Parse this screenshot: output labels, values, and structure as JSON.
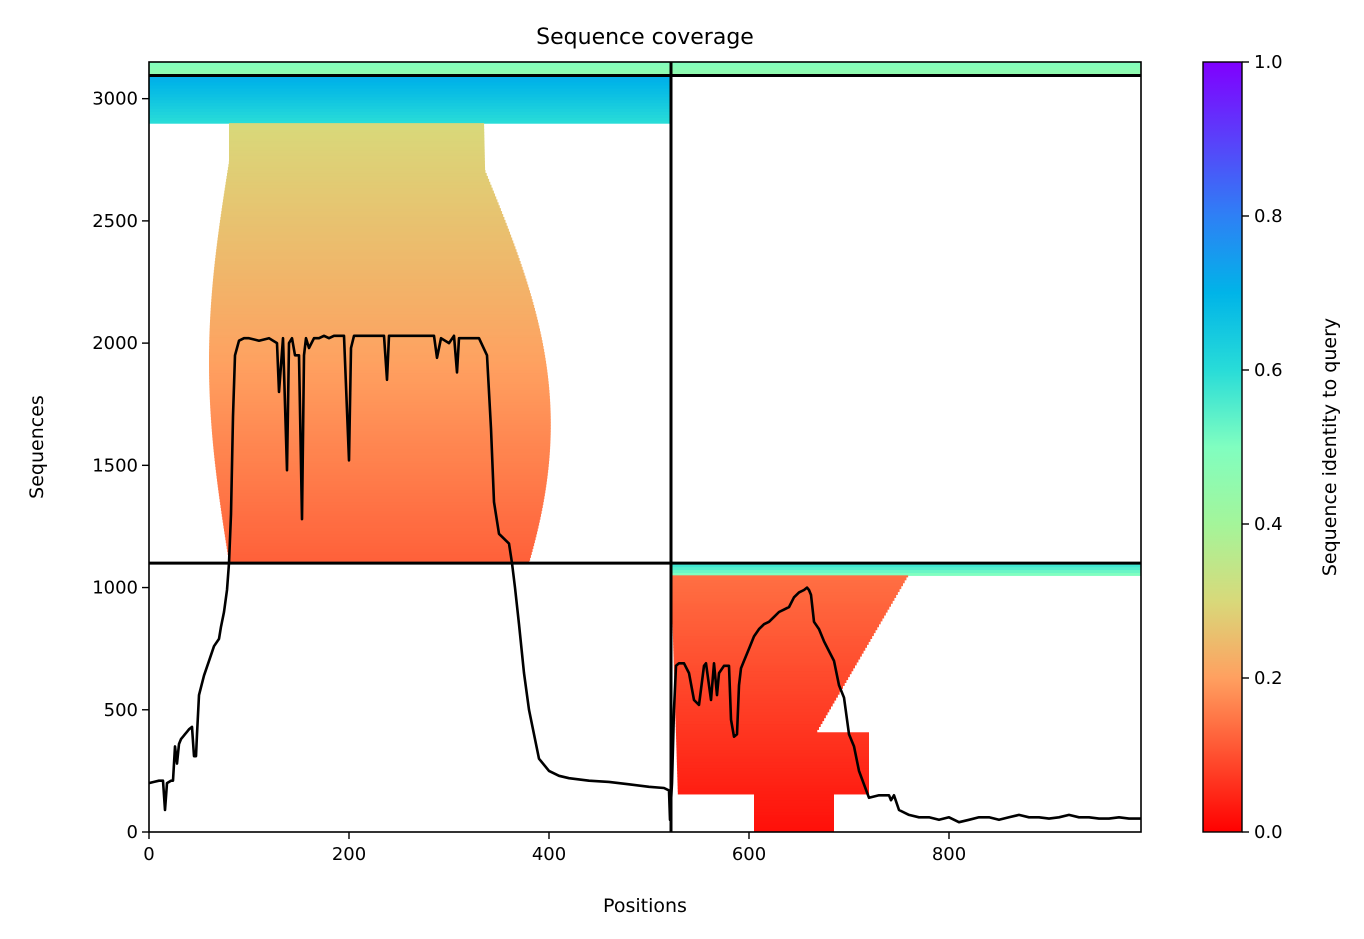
{
  "chart_data": {
    "type": "heatmap",
    "title": "Sequence coverage",
    "xlabel": "Positions",
    "ylabel": "Sequences",
    "xlim": [
      0,
      992
    ],
    "ylim": [
      0,
      3150
    ],
    "xticks": [
      0,
      200,
      400,
      600,
      800
    ],
    "yticks": [
      0,
      500,
      1000,
      1500,
      2000,
      2500,
      3000
    ],
    "grid": false,
    "segment_boundary_x": 522,
    "block_boundaries_y": [
      1100,
      3095
    ],
    "colorbar": {
      "label": "Sequence identity to query",
      "range": [
        0,
        1
      ],
      "ticks": [
        0.0,
        0.2,
        0.4,
        0.6,
        0.8,
        1.0
      ],
      "tick_labels": [
        "0.0",
        "0.2",
        "0.4",
        "0.6",
        "0.8",
        "1.0"
      ],
      "colormap": "rainbow_r"
    },
    "coverage_blocks": [
      {
        "name": "paired",
        "x_range": [
          0,
          992
        ],
        "y_range": [
          3095,
          3150
        ],
        "identity_range": [
          0.45,
          0.5
        ],
        "lengths": [
          [
            [
              0,
              522
            ],
            [
              522,
              992
            ]
          ]
        ]
      },
      {
        "name": "segment-1-top",
        "x_range": [
          0,
          522
        ],
        "y_range": [
          2900,
          3095
        ],
        "identity_range": [
          0.6,
          0.72
        ]
      },
      {
        "name": "segment-1-bulk",
        "x_range": [
          0,
          522
        ],
        "y_range": [
          1100,
          2900
        ],
        "identity_range": [
          0.12,
          0.3
        ]
      },
      {
        "name": "segment-2-top",
        "x_range": [
          522,
          992
        ],
        "y_range": [
          1050,
          1100
        ],
        "identity_range": [
          0.5,
          0.6
        ]
      },
      {
        "name": "segment-2-bulk",
        "x_range": [
          522,
          992
        ],
        "y_range": [
          0,
          1050
        ],
        "identity_range": [
          0.02,
          0.14
        ]
      }
    ],
    "coverage_line": {
      "color": "#000000",
      "x": [
        0,
        5,
        10,
        14,
        16,
        18,
        22,
        24,
        26,
        28,
        30,
        32,
        34,
        36,
        38,
        40,
        43,
        45,
        47,
        48,
        50,
        55,
        60,
        65,
        70,
        72,
        75,
        78,
        80,
        82,
        84,
        86,
        88,
        90,
        95,
        100,
        110,
        120,
        128,
        130,
        134,
        138,
        140,
        143,
        146,
        150,
        153,
        155,
        157,
        160,
        165,
        170,
        175,
        180,
        185,
        195,
        200,
        202,
        205,
        210,
        230,
        235,
        238,
        240,
        243,
        260,
        280,
        285,
        288,
        292,
        300,
        305,
        308,
        310,
        315,
        330,
        338,
        342,
        345,
        350,
        355,
        360,
        363,
        366,
        370,
        375,
        380,
        385,
        390,
        400,
        410,
        420,
        440,
        460,
        480,
        500,
        515,
        520,
        521,
        523,
        525,
        527,
        530,
        535,
        540,
        545,
        550,
        555,
        557,
        560,
        562,
        565,
        568,
        570,
        575,
        580,
        582,
        585,
        588,
        590,
        592,
        595,
        600,
        605,
        610,
        615,
        620,
        625,
        630,
        635,
        640,
        645,
        650,
        655,
        658,
        660,
        662,
        665,
        670,
        675,
        680,
        685,
        690,
        695,
        700,
        705,
        710,
        720,
        730,
        740,
        742,
        745,
        750,
        760,
        770,
        780,
        790,
        800,
        810,
        820,
        830,
        840,
        850,
        860,
        870,
        880,
        890,
        900,
        910,
        920,
        930,
        940,
        950,
        960,
        970,
        980,
        992
      ],
      "y": [
        200,
        205,
        210,
        210,
        90,
        200,
        210,
        210,
        350,
        280,
        360,
        380,
        390,
        400,
        410,
        420,
        430,
        310,
        310,
        400,
        560,
        640,
        700,
        760,
        790,
        840,
        900,
        990,
        1100,
        1300,
        1700,
        1950,
        1980,
        2010,
        2020,
        2020,
        2010,
        2020,
        2000,
        1800,
        2020,
        1480,
        2000,
        2020,
        1950,
        1950,
        1280,
        1950,
        2020,
        1980,
        2020,
        2020,
        2030,
        2020,
        2030,
        2030,
        1520,
        1980,
        2030,
        2030,
        2030,
        2030,
        1850,
        2030,
        2030,
        2030,
        2030,
        2030,
        1940,
        2020,
        2000,
        2030,
        1880,
        2020,
        2020,
        2020,
        1950,
        1650,
        1350,
        1220,
        1200,
        1180,
        1100,
        1000,
        850,
        650,
        500,
        400,
        300,
        250,
        230,
        220,
        210,
        205,
        195,
        185,
        180,
        170,
        50,
        200,
        500,
        680,
        690,
        690,
        650,
        540,
        520,
        680,
        690,
        600,
        540,
        690,
        560,
        650,
        680,
        680,
        460,
        390,
        400,
        600,
        670,
        700,
        750,
        800,
        830,
        850,
        860,
        880,
        900,
        910,
        920,
        960,
        980,
        990,
        1000,
        990,
        970,
        860,
        830,
        780,
        740,
        700,
        600,
        550,
        400,
        350,
        250,
        140,
        150,
        150,
        130,
        150,
        90,
        70,
        60,
        60,
        50,
        60,
        40,
        50,
        60,
        60,
        50,
        60,
        70,
        60,
        60,
        55,
        60,
        70,
        60,
        60,
        55,
        55,
        60,
        55,
        55
      ]
    }
  }
}
